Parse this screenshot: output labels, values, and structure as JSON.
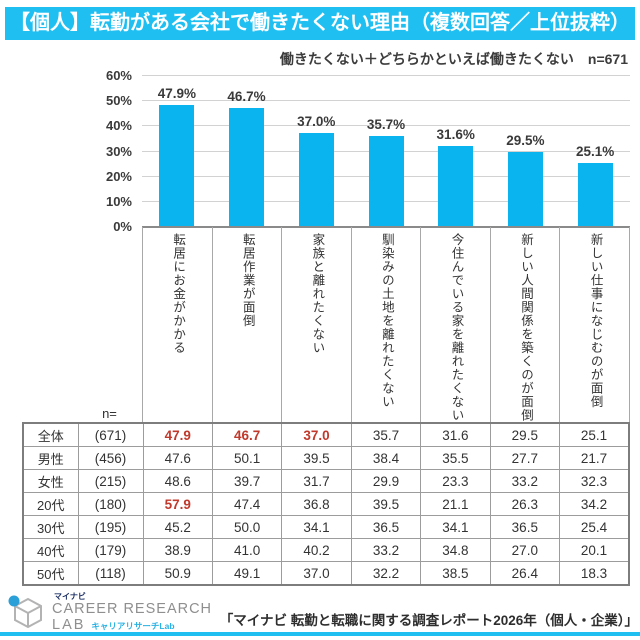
{
  "title": "【個人】転勤がある会社で働きたくない理由（複数回答／上位抜粋）",
  "subtitle": "働きたくない＋どちらかといえば働きたくない　n=671",
  "colors": {
    "accent_cyan": "#1fbff2",
    "bar_cyan": "#0ab4ee",
    "highlight_red": "#c0392b"
  },
  "chart_data": {
    "type": "bar",
    "title": "【個人】転勤がある会社で働きたくない理由（複数回答／上位抜粋）",
    "subtitle": "働きたくない＋どちらかといえば働きたくない　n=671",
    "categories": [
      "転居にお金がかかる",
      "転居作業が面倒",
      "家族と離れたくない",
      "馴染みの土地を離れたくない",
      "今住んでいる家を離れたくない",
      "新しい人間関係を築くのが面倒",
      "新しい仕事になじむのが面倒"
    ],
    "values": [
      47.9,
      46.7,
      37.0,
      35.7,
      31.6,
      29.5,
      25.1
    ],
    "value_labels": [
      "47.9%",
      "46.7%",
      "37.0%",
      "35.7%",
      "31.6%",
      "29.5%",
      "25.1%"
    ],
    "ylabel_ticks": [
      "60%",
      "50%",
      "40%",
      "30%",
      "20%",
      "10%",
      "0%"
    ],
    "ylim": [
      0,
      60
    ],
    "grid": true,
    "legend_position": "none"
  },
  "table": {
    "n_header": "n=",
    "rows": [
      {
        "label": "全体",
        "n": "(671)",
        "values": [
          "47.9",
          "46.7",
          "37.0",
          "35.7",
          "31.6",
          "29.5",
          "25.1"
        ],
        "red": [
          0,
          1,
          2
        ]
      },
      {
        "label": "男性",
        "n": "(456)",
        "values": [
          "47.6",
          "50.1",
          "39.5",
          "38.4",
          "35.5",
          "27.7",
          "21.7"
        ],
        "red": []
      },
      {
        "label": "女性",
        "n": "(215)",
        "values": [
          "48.6",
          "39.7",
          "31.7",
          "29.9",
          "23.3",
          "33.2",
          "32.3"
        ],
        "red": []
      },
      {
        "label": "20代",
        "n": "(180)",
        "values": [
          "57.9",
          "47.4",
          "36.8",
          "39.5",
          "21.1",
          "26.3",
          "34.2"
        ],
        "red": [
          0
        ]
      },
      {
        "label": "30代",
        "n": "(195)",
        "values": [
          "45.2",
          "50.0",
          "34.1",
          "36.5",
          "34.1",
          "36.5",
          "25.4"
        ],
        "red": []
      },
      {
        "label": "40代",
        "n": "(179)",
        "values": [
          "38.9",
          "41.0",
          "40.2",
          "33.2",
          "34.8",
          "27.0",
          "20.1"
        ],
        "red": []
      },
      {
        "label": "50代",
        "n": "(118)",
        "values": [
          "50.9",
          "49.1",
          "37.0",
          "32.2",
          "38.5",
          "26.4",
          "18.3"
        ],
        "red": []
      }
    ]
  },
  "footer": {
    "logo": {
      "brand_small": "マイナビ",
      "brand_main": "CAREER RESEARCH",
      "brand_sub": "LAB",
      "brand_sub2": "キャリアリサーチLab"
    },
    "source": "「マイナビ 転勤と転職に関する調査レポート2026年（個人・企業）」"
  }
}
